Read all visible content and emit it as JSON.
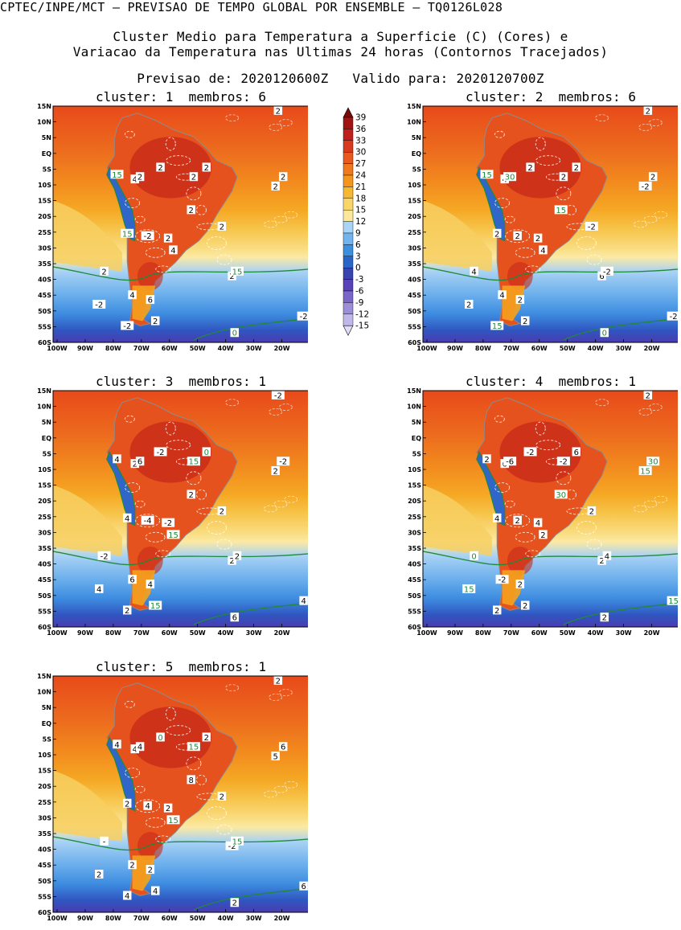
{
  "header": {
    "line1": "CPTEC/INPE/MCT — PREVISAO DE TEMPO GLOBAL POR ENSEMBLE — TQ0126L028",
    "line2": "Cluster Medio para Temperatura a Superficie (C) (Cores) e",
    "line3": "Variacao da Temperatura nas Ultimas 24 horas (Contornos Tracejados)",
    "line4": "Previsao de: 2020120600Z   Valido para: 2020120700Z"
  },
  "panels": [
    {
      "title": "cluster: 1  membros: 6",
      "labels": [
        "2",
        "15",
        "4",
        "2",
        "2",
        "2",
        "2",
        "15",
        "-2",
        "2",
        "2",
        "2",
        "4",
        "2",
        "-2",
        "4",
        "6",
        "-2",
        "2",
        "15",
        "0",
        "-2",
        "2",
        "2",
        "2"
      ]
    },
    {
      "title": "cluster: 2  membros: 6",
      "labels": [
        "2",
        "15",
        "4",
        "30",
        "2",
        "2",
        "-2",
        "2",
        "2",
        "2",
        "15",
        "-2",
        "4",
        "6",
        "2",
        "4",
        "2",
        "15",
        "2",
        "-2",
        "0",
        "-2",
        "2",
        "2",
        "4"
      ]
    },
    {
      "title": "cluster: 3  membros: 1",
      "labels": [
        "-2",
        "4",
        "2",
        "6",
        "15",
        "-2",
        "2",
        "4",
        "-4",
        "-2",
        "2",
        "2",
        "15",
        "2",
        "4",
        "6",
        "4",
        "2",
        "15",
        "2",
        "6",
        "4",
        "0",
        "-2",
        "-2"
      ]
    },
    {
      "title": "cluster: 4  membros: 1",
      "labels": [
        "2",
        "2",
        "6",
        "-6",
        "-2",
        "30",
        "15",
        "4",
        "2",
        "4",
        "30",
        "2",
        "2",
        "2",
        "15",
        "-2",
        "2",
        "2",
        "2",
        "4",
        "2",
        "15",
        "6",
        "-2",
        "0"
      ]
    },
    {
      "title": "cluster: 5  membros: 1",
      "labels": [
        "2",
        "4",
        "4",
        "4",
        "15",
        "6",
        "5",
        "2",
        "4",
        "2",
        "8",
        "2",
        "15",
        "-2",
        "2",
        "2",
        "2",
        "4",
        "4",
        "15",
        "2",
        "6",
        "2",
        "0",
        "-"
      ]
    }
  ],
  "axes": {
    "lat_ticks": [
      "15N",
      "10N",
      "5N",
      "EQ",
      "5S",
      "10S",
      "15S",
      "20S",
      "25S",
      "30S",
      "35S",
      "40S",
      "45S",
      "50S",
      "55S",
      "60S"
    ],
    "lon_ticks": [
      "100W",
      "90W",
      "80W",
      "70W",
      "60W",
      "50W",
      "40W",
      "30W",
      "20W"
    ]
  },
  "colorbar": {
    "ticks": [
      "39",
      "36",
      "33",
      "30",
      "27",
      "24",
      "21",
      "18",
      "15",
      "12",
      "9",
      "6",
      "3",
      "0",
      "-3",
      "-6",
      "-9",
      "-12",
      "-15"
    ],
    "colors": [
      "#7a0a0a",
      "#a01414",
      "#c0201c",
      "#d83a1e",
      "#e85a1e",
      "#f0781e",
      "#f4961e",
      "#f6b832",
      "#f8d66a",
      "#fbe89c",
      "#a9d4f5",
      "#74b4ee",
      "#3d8fe0",
      "#2a66c8",
      "#3a44b0",
      "#5a42b8",
      "#7a66c8",
      "#9c8ed8",
      "#c0b8e8",
      "#e2dcf4"
    ]
  }
}
